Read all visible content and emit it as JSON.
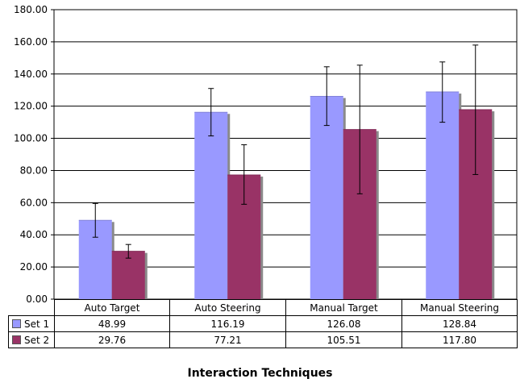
{
  "chart_data": {
    "type": "bar",
    "xlabel": "Interaction Techniques",
    "ylabel": "",
    "ylim": [
      0,
      180
    ],
    "y_ticks": [
      "0.00",
      "20.00",
      "40.00",
      "60.00",
      "80.00",
      "100.00",
      "120.00",
      "140.00",
      "160.00",
      "180.00"
    ],
    "grid": true,
    "legend": "data-table",
    "categories": [
      "Auto Target",
      "Auto Steering",
      "Manual Target",
      "Manual Steering"
    ],
    "series": [
      {
        "name": "Set 1",
        "color": "#9999ff",
        "values": [
          48.99,
          116.19,
          126.08,
          128.84
        ],
        "labels": [
          "48.99",
          "116.19",
          "126.08",
          "128.84"
        ],
        "error_low": [
          38.5,
          101.5,
          108,
          110
        ],
        "error_high": [
          59.5,
          131,
          144.5,
          147.5
        ]
      },
      {
        "name": "Set 2",
        "color": "#993366",
        "values": [
          29.76,
          77.21,
          105.51,
          117.8
        ],
        "labels": [
          "29.76",
          "77.21",
          "105.51",
          "117.80"
        ],
        "error_low": [
          25.5,
          59,
          65.5,
          77.5
        ],
        "error_high": [
          34,
          96,
          145.5,
          158
        ]
      }
    ]
  }
}
